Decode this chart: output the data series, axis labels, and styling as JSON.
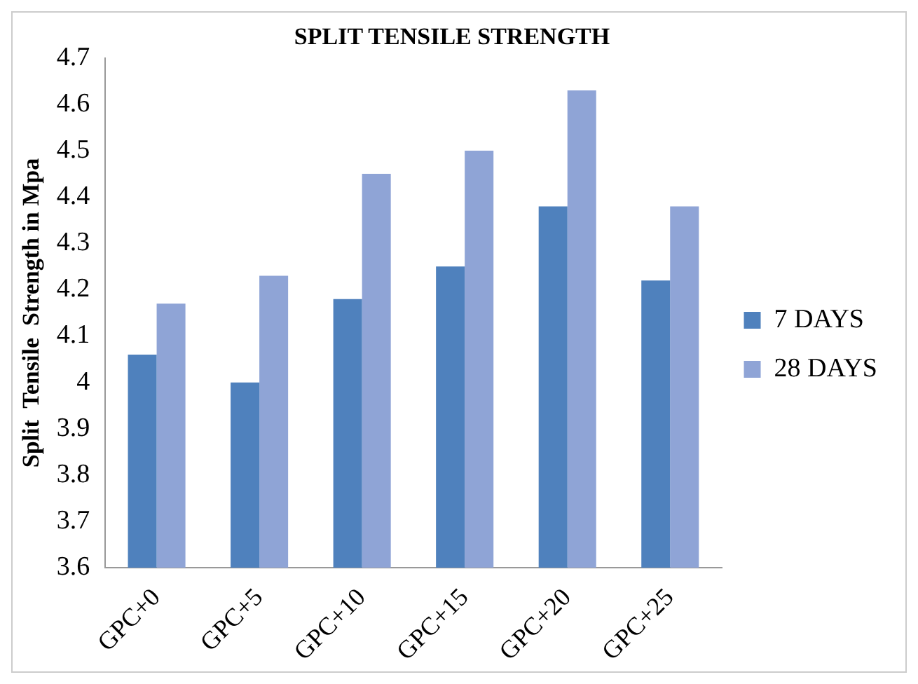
{
  "chart_data": {
    "type": "bar",
    "title": "SPLIT TENSILE STRENGTH",
    "ylabel": "Split  Tensile  Strength in Mpa",
    "categories": [
      "GPC+0",
      "GPC+5",
      "GPC+10",
      "GPC+15",
      "GPC+20",
      "GPC+25"
    ],
    "series": [
      {
        "name": "7 DAYS",
        "color": "#4f81bd",
        "values": [
          4.06,
          4.0,
          4.18,
          4.25,
          4.38,
          4.22
        ]
      },
      {
        "name": "28 DAYS",
        "color": "#8fa4d6",
        "values": [
          4.17,
          4.23,
          4.45,
          4.5,
          4.63,
          4.38
        ]
      }
    ],
    "ylim": [
      3.6,
      4.7
    ],
    "yticks": [
      3.6,
      3.7,
      3.8,
      3.9,
      4,
      4.1,
      4.2,
      4.3,
      4.4,
      4.5,
      4.6,
      4.7
    ],
    "grid": false,
    "legend": "right"
  }
}
